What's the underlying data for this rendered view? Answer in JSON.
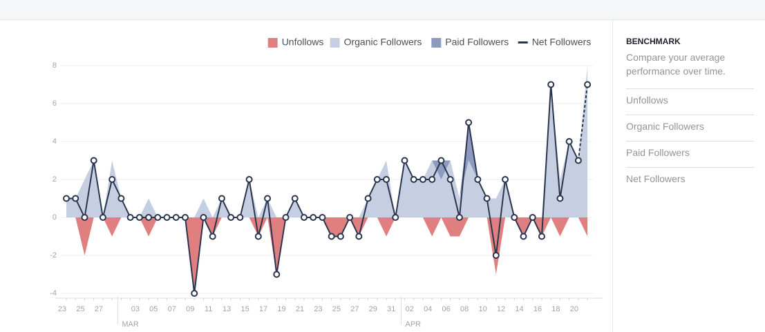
{
  "chart_data": {
    "type": "area",
    "categories": [
      "23",
      null,
      "25",
      null,
      "27",
      null,
      null,
      null,
      "03",
      null,
      "05",
      null,
      "07",
      null,
      "09",
      null,
      "11",
      null,
      "13",
      null,
      "15",
      null,
      "17",
      null,
      "19",
      null,
      "21",
      null,
      "23",
      null,
      "25",
      null,
      "27",
      null,
      "29",
      null,
      "31",
      null,
      "02",
      null,
      "04",
      null,
      "06",
      null,
      "08",
      null,
      "10",
      null,
      "12",
      null,
      "14",
      null,
      "16",
      null,
      "18",
      null,
      "20",
      null
    ],
    "months": [
      "MAR",
      "APR"
    ],
    "ylim": [
      -4,
      8
    ],
    "yticks": [
      -4,
      -2,
      0,
      2,
      4,
      6,
      8
    ],
    "grid": true,
    "series": [
      {
        "name": "Unfollows",
        "color": "#e07f7f",
        "values": [
          0,
          0,
          -2,
          0,
          0,
          -1,
          0,
          0,
          0,
          -1,
          0,
          0,
          0,
          0,
          -4,
          0,
          -1,
          0,
          0,
          0,
          0,
          -1,
          0,
          -3,
          0,
          0,
          0,
          0,
          0,
          -1,
          -1,
          0,
          -1,
          0,
          0,
          -1,
          0,
          0,
          0,
          0,
          -1,
          0,
          -1,
          -1,
          0,
          0,
          0,
          -3,
          0,
          0,
          -1,
          0,
          -1,
          0,
          -1,
          0,
          0,
          -1
        ]
      },
      {
        "name": "Organic Followers",
        "color": "#c6cee1",
        "values": [
          1,
          1,
          2,
          3,
          0,
          3,
          1,
          0,
          0,
          1,
          0,
          0,
          0,
          0,
          0,
          1,
          0,
          1,
          0,
          0,
          2,
          0,
          1,
          0,
          0,
          1,
          0,
          0,
          0,
          0,
          0,
          0,
          0,
          1,
          2,
          3,
          0,
          3,
          2,
          2,
          3,
          2,
          3,
          1,
          3,
          2,
          1,
          1,
          2,
          0,
          0,
          0,
          0,
          7,
          2,
          4,
          3,
          8
        ]
      },
      {
        "name": "Paid Followers",
        "color": "#8e9bbf",
        "values": [
          0,
          0,
          0,
          0,
          0,
          0,
          0,
          0,
          0,
          0,
          0,
          0,
          0,
          0,
          0,
          0,
          0,
          0,
          0,
          0,
          0,
          0,
          0,
          0,
          0,
          0,
          0,
          0,
          0,
          0,
          0,
          0,
          0,
          0,
          0,
          0,
          0,
          0,
          0,
          0,
          0,
          1,
          0,
          0,
          2,
          0,
          0,
          0,
          0,
          0,
          0,
          0,
          0,
          0,
          0,
          0,
          0,
          0
        ]
      },
      {
        "name": "Net Followers",
        "color": "#29344f",
        "values": [
          1,
          1,
          0,
          3,
          0,
          2,
          1,
          0,
          0,
          0,
          0,
          0,
          0,
          0,
          -4,
          0,
          -1,
          1,
          0,
          0,
          2,
          -1,
          1,
          -3,
          0,
          1,
          0,
          0,
          0,
          -1,
          -1,
          0,
          -1,
          1,
          2,
          2,
          0,
          3,
          2,
          2,
          2,
          3,
          2,
          0,
          5,
          2,
          1,
          -2,
          2,
          0,
          -1,
          0,
          -1,
          7,
          1,
          4,
          3,
          7
        ]
      }
    ]
  },
  "sidebar": {
    "title": "BENCHMARK",
    "description": "Compare your average performance over time.",
    "items": [
      "Unfollows",
      "Organic Followers",
      "Paid Followers",
      "Net Followers"
    ]
  }
}
